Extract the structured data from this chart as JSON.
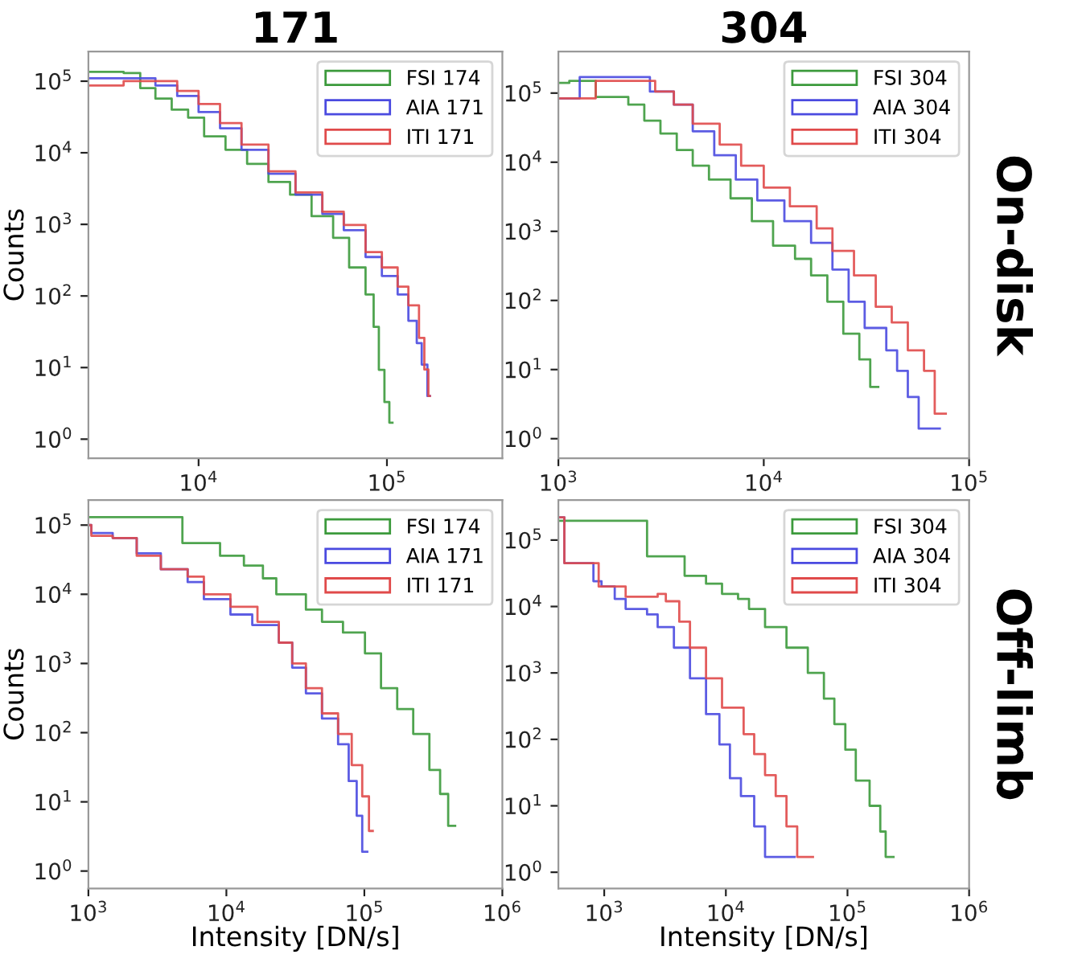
{
  "chart_data": [
    {
      "type": "step",
      "title": "171",
      "ylabel": "Counts",
      "legend": "top right",
      "grid": false,
      "log": "xy",
      "marker": "none",
      "xlim": [
        2600,
        410000
      ],
      "ylim": [
        0.54,
        260000
      ],
      "xticks": [
        {
          "value": 10000,
          "label": "10$^{4}$"
        },
        {
          "value": 100000,
          "label": "10$^{5}$"
        }
      ],
      "yticks": [
        {
          "value": 1,
          "label": "10$^{0}$"
        },
        {
          "value": 10,
          "label": "10$^{1}$"
        },
        {
          "value": 100,
          "label": "10$^{2}$"
        },
        {
          "value": 1000,
          "label": "10$^{3}$"
        },
        {
          "value": 10000,
          "label": "10$^{4}$"
        },
        {
          "value": 100000,
          "label": "10$^{5}$"
        }
      ],
      "series": [
        {
          "name": "FSI 174",
          "color": "#3c9a3c",
          "x": [
            2600,
            4000,
            4900,
            5900,
            7200,
            8800,
            10700,
            13900,
            18100,
            23500,
            30600,
            39800,
            51800,
            63000,
            77000,
            85000,
            90600,
            97000,
            103000,
            107000
          ],
          "values": [
            135000,
            130000,
            80000,
            57000,
            40000,
            31000,
            17000,
            11000,
            7000,
            3900,
            2600,
            1300,
            650,
            250,
            105,
            37,
            9.3,
            3.3,
            1.7,
            1.7
          ]
        },
        {
          "name": "AIA 171",
          "color": "#4a4ae0",
          "x": [
            2600,
            5900,
            7700,
            10000,
            13000,
            16900,
            23500,
            32700,
            45400,
            59000,
            77000,
            94000,
            114000,
            130000,
            144000,
            153000,
            164000,
            169000
          ],
          "values": [
            110000,
            87000,
            62000,
            37000,
            22000,
            11000,
            5100,
            2600,
            1400,
            830,
            350,
            190,
            105,
            45,
            22,
            11,
            4,
            4
          ]
        },
        {
          "name": "ITI 171",
          "color": "#e04a4a",
          "x": [
            2600,
            4000,
            7700,
            10000,
            13000,
            16900,
            23500,
            32700,
            45400,
            59000,
            77000,
            94000,
            114000,
            130000,
            148000,
            158000,
            166000,
            169000
          ],
          "values": [
            87000,
            100000,
            73000,
            48000,
            26000,
            13000,
            5500,
            2800,
            1500,
            980,
            410,
            250,
            135,
            74,
            26,
            9.4,
            4,
            4
          ]
        }
      ]
    },
    {
      "type": "step",
      "title": "304",
      "legend": "top right",
      "grid": false,
      "log": "xy",
      "marker": "none",
      "annotations": [
        "On-disk"
      ],
      "xlim": [
        1000,
        100000
      ],
      "ylim": [
        0.52,
        400000
      ],
      "xticks": [
        {
          "value": 1000,
          "label": "10$^{3}$"
        },
        {
          "value": 10000,
          "label": "10$^{4}$"
        },
        {
          "value": 100000,
          "label": "10$^{5}$"
        }
      ],
      "yticks": [
        {
          "value": 1,
          "label": "10$^{0}$"
        },
        {
          "value": 10,
          "label": "10$^{1}$"
        },
        {
          "value": 100,
          "label": "10$^{2}$"
        },
        {
          "value": 1000,
          "label": "10$^{3}$"
        },
        {
          "value": 10000,
          "label": "10$^{4}$"
        },
        {
          "value": 100000,
          "label": "10$^{5}$"
        }
      ],
      "series": [
        {
          "name": "FSI 304",
          "color": "#3c9a3c",
          "x": [
            1000,
            1130,
            1520,
            2190,
            2620,
            3140,
            3770,
            4510,
            5410,
            6890,
            8750,
            11100,
            14200,
            17000,
            20400,
            24400,
            29200,
            33000,
            36100
          ],
          "values": [
            140000,
            150000,
            88000,
            68000,
            40000,
            26000,
            15000,
            8900,
            5600,
            3000,
            1400,
            620,
            400,
            230,
            96,
            33,
            14,
            5.6,
            5.6
          ]
        },
        {
          "name": "AIA 304",
          "color": "#4a4ae0",
          "x": [
            1000,
            1270,
            2790,
            3650,
            4510,
            5740,
            7310,
            9300,
            12600,
            17000,
            21600,
            25900,
            31000,
            39500,
            44600,
            50300,
            56800,
            72000
          ],
          "values": [
            84000,
            170000,
            105000,
            68000,
            28000,
            12600,
            5600,
            2800,
            1400,
            680,
            280,
            96,
            40,
            19,
            9.6,
            4,
            1.4,
            1.4
          ]
        },
        {
          "name": "ITI 304",
          "color": "#e04a4a",
          "x": [
            1000,
            1520,
            2960,
            3650,
            4510,
            6100,
            7760,
            10000,
            13400,
            18100,
            21600,
            27500,
            35100,
            42000,
            50300,
            60300,
            68000,
            77000
          ],
          "values": [
            84000,
            150000,
            105000,
            68000,
            36000,
            18000,
            8900,
            4300,
            2300,
            1100,
            520,
            230,
            81,
            48,
            19,
            9.6,
            2.3,
            2.3
          ]
        }
      ]
    },
    {
      "type": "step",
      "xlabel": "Intensity [DN/s]",
      "ylabel": "Counts",
      "legend": "top right",
      "grid": false,
      "log": "xy",
      "marker": "none",
      "xlim": [
        1000,
        1000000
      ],
      "ylim": [
        0.56,
        230000
      ],
      "xticks": [
        {
          "value": 1000,
          "label": "10$^{3}$"
        },
        {
          "value": 10000,
          "label": "10$^{4}$"
        },
        {
          "value": 100000,
          "label": "10$^{5}$"
        },
        {
          "value": 1000000,
          "label": "10$^{6}$"
        }
      ],
      "yticks": [
        {
          "value": 1,
          "label": "10$^{0}$"
        },
        {
          "value": 10,
          "label": "10$^{1}$"
        },
        {
          "value": 100,
          "label": "10$^{2}$"
        },
        {
          "value": 1000,
          "label": "10$^{3}$"
        },
        {
          "value": 10000,
          "label": "10$^{4}$"
        },
        {
          "value": 100000,
          "label": "10$^{5}$"
        }
      ],
      "series": [
        {
          "name": "FSI 174",
          "color": "#3c9a3c",
          "x": [
            1000,
            4800,
            9000,
            13400,
            18400,
            23000,
            37700,
            49300,
            70000,
            101000,
            132000,
            173000,
            226000,
            296000,
            354000,
            405000,
            455000
          ],
          "values": [
            130000,
            55000,
            36000,
            26000,
            17000,
            10000,
            6000,
            4000,
            2800,
            1400,
            440,
            220,
            96,
            29,
            13,
            4.5,
            4.5
          ]
        },
        {
          "name": "AIA 171",
          "color": "#4a4ae0",
          "x": [
            1000,
            1050,
            1500,
            2240,
            3350,
            5240,
            6870,
            10700,
            15400,
            24000,
            30000,
            37700,
            49300,
            64500,
            77000,
            88000,
            96500,
            105000
          ],
          "values": [
            100000,
            77000,
            65000,
            39000,
            23000,
            15000,
            8500,
            5100,
            3600,
            2000,
            870,
            370,
            160,
            68,
            20,
            6.3,
            1.9,
            1.9
          ]
        },
        {
          "name": "ITI 171",
          "color": "#e04a4a",
          "x": [
            1000,
            1050,
            1500,
            2240,
            3350,
            5240,
            6870,
            10700,
            16800,
            24000,
            30000,
            37700,
            49300,
            64500,
            81000,
            96500,
            108000,
            115000
          ],
          "values": [
            100000,
            70000,
            65000,
            36000,
            23000,
            18000,
            10000,
            6600,
            4000,
            2000,
            1000,
            440,
            190,
            96,
            34,
            12,
            3.8,
            3.8
          ]
        }
      ]
    },
    {
      "type": "step",
      "xlabel": "Intensity [DN/s]",
      "legend": "top right",
      "grid": false,
      "log": "xy",
      "marker": "none",
      "annotations": [
        "Off-limb"
      ],
      "xlim": [
        420,
        1000000
      ],
      "ylim": [
        0.57,
        400000
      ],
      "xticks": [
        {
          "value": 1000,
          "label": "10$^{3}$"
        },
        {
          "value": 10000,
          "label": "10$^{4}$"
        },
        {
          "value": 100000,
          "label": "10$^{5}$"
        },
        {
          "value": 1000000,
          "label": "10$^{6}$"
        }
      ],
      "yticks": [
        {
          "value": 1,
          "label": "10$^{0}$"
        },
        {
          "value": 10,
          "label": "10$^{1}$"
        },
        {
          "value": 100,
          "label": "10$^{2}$"
        },
        {
          "value": 1000,
          "label": "10$^{3}$"
        },
        {
          "value": 10000,
          "label": "10$^{4}$"
        },
        {
          "value": 100000,
          "label": "10$^{5}$"
        }
      ],
      "series": [
        {
          "name": "FSI 304",
          "color": "#3c9a3c",
          "x": [
            420,
            2250,
            4580,
            6870,
            9300,
            12600,
            15500,
            21000,
            31500,
            47200,
            64000,
            78000,
            96000,
            117000,
            152000,
            186000,
            206000,
            239000
          ],
          "values": [
            195000,
            57000,
            29000,
            22000,
            15500,
            13000,
            9200,
            4900,
            2400,
            1000,
            410,
            170,
            70,
            24,
            10,
            4.1,
            1.7,
            1.7
          ]
        },
        {
          "name": "AIA 304",
          "color": "#4a4ae0",
          "x": [
            420,
            470,
            815,
            950,
            1220,
            1500,
            2250,
            2750,
            3740,
            5070,
            6870,
            8850,
            10800,
            13300,
            17100,
            21000,
            36700
          ],
          "values": [
            220000,
            45000,
            24000,
            20000,
            13000,
            9200,
            7600,
            4900,
            2400,
            830,
            240,
            84,
            26,
            14,
            4.9,
            1.7,
            1.7
          ]
        },
        {
          "name": "ITI 304",
          "color": "#e04a4a",
          "x": [
            420,
            470,
            900,
            1500,
            2750,
            3210,
            4140,
            5070,
            6870,
            9300,
            14000,
            17100,
            21000,
            25700,
            31500,
            38600,
            52000
          ],
          "values": [
            220000,
            45000,
            20000,
            14000,
            15500,
            12000,
            5900,
            2400,
            830,
            300,
            120,
            60,
            29,
            14,
            4.9,
            1.7,
            1.7
          ]
        }
      ]
    }
  ]
}
